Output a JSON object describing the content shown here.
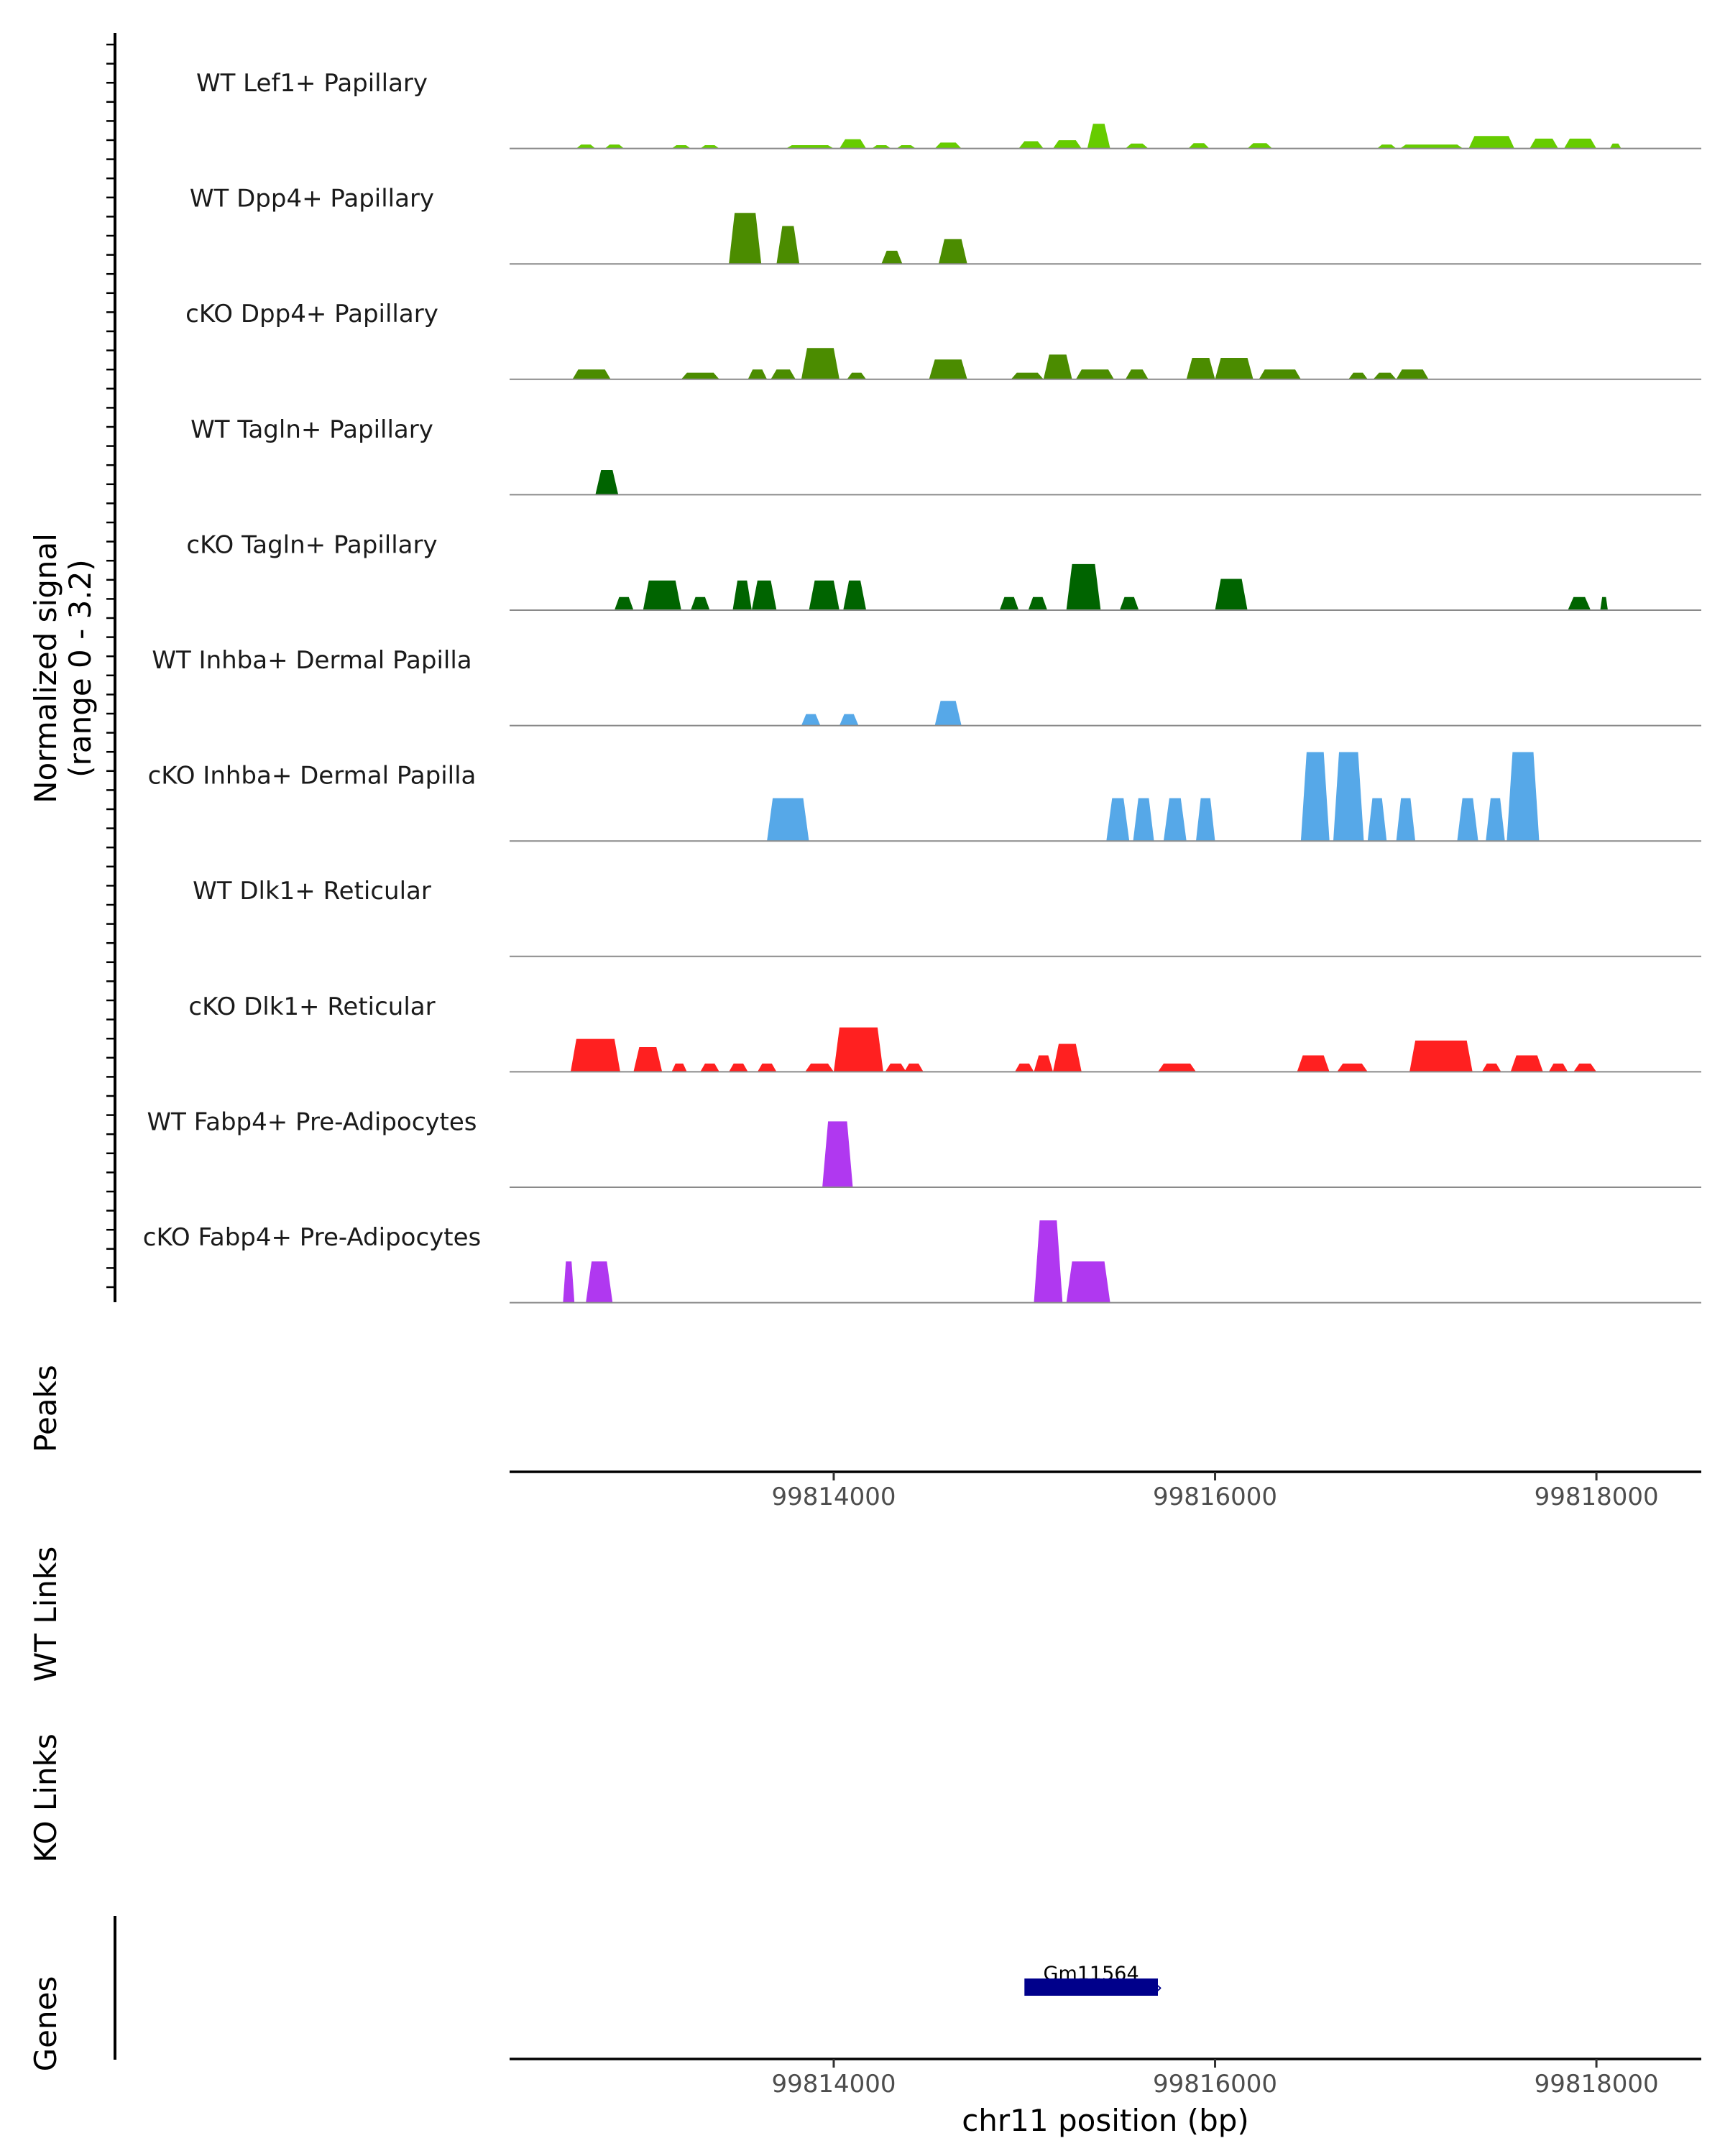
{
  "chart_data": {
    "type": "area",
    "title": "",
    "chromosome": "chr11",
    "xlabel": "chr11 position (bp)",
    "ylabel_line1": "Normalized signal",
    "ylabel_line2": "(range 0 - 3.2)",
    "ylim": [
      0,
      3.2
    ],
    "xlim": [
      99812300,
      99818550
    ],
    "xticks": [
      99814000,
      99816000,
      99818000
    ],
    "xtick_labels": [
      "99814000",
      "99816000",
      "99818000"
    ],
    "side_labels": {
      "peaks": "Peaks",
      "wt_links": "WT Links",
      "ko_links": "KO Links",
      "genes": "Genes"
    },
    "gene": {
      "name": "Gm11564",
      "start": 99815000,
      "end": 99815700,
      "strand": "+",
      "color": "#00008b"
    },
    "series": [
      {
        "name": "WT Lef1+ Papillary",
        "color": "#66cc00",
        "regions": [
          [
            99812650,
            99812750,
            0.12
          ],
          [
            99812800,
            99812900,
            0.12
          ],
          [
            99813150,
            99813250,
            0.1
          ],
          [
            99813300,
            99813400,
            0.1
          ],
          [
            99813750,
            99814000,
            0.1
          ],
          [
            99814030,
            99814170,
            0.28
          ],
          [
            99814200,
            99814300,
            0.1
          ],
          [
            99814330,
            99814430,
            0.1
          ],
          [
            99814530,
            99814670,
            0.18
          ],
          [
            99814970,
            99815100,
            0.22
          ],
          [
            99815150,
            99815300,
            0.25
          ],
          [
            99815330,
            99815450,
            0.75
          ],
          [
            99815530,
            99815650,
            0.15
          ],
          [
            99815860,
            99815970,
            0.16
          ],
          [
            99816170,
            99816300,
            0.16
          ],
          [
            99816850,
            99816950,
            0.12
          ],
          [
            99816970,
            99817300,
            0.12
          ],
          [
            99817330,
            99817570,
            0.38
          ],
          [
            99817650,
            99817800,
            0.3
          ],
          [
            99817830,
            99818000,
            0.3
          ],
          [
            99818070,
            99818130,
            0.15
          ]
        ]
      },
      {
        "name": "WT Dpp4+ Papillary",
        "color": "#4b8c00",
        "regions": [
          [
            99813450,
            99813620,
            1.55
          ],
          [
            99813700,
            99813820,
            1.15
          ],
          [
            99814250,
            99814360,
            0.4
          ],
          [
            99814550,
            99814700,
            0.75
          ]
        ]
      },
      {
        "name": "cKO Dpp4+ Papillary",
        "color": "#4b8c00",
        "regions": [
          [
            99812630,
            99812830,
            0.3
          ],
          [
            99813200,
            99813400,
            0.2
          ],
          [
            99813550,
            99813650,
            0.3
          ],
          [
            99813670,
            99813800,
            0.3
          ],
          [
            99813830,
            99814030,
            0.95
          ],
          [
            99814070,
            99814170,
            0.2
          ],
          [
            99814500,
            99814700,
            0.6
          ],
          [
            99814930,
            99815100,
            0.2
          ],
          [
            99815100,
            99815250,
            0.75
          ],
          [
            99815270,
            99815470,
            0.3
          ],
          [
            99815530,
            99815650,
            0.3
          ],
          [
            99815850,
            99816000,
            0.65
          ],
          [
            99816000,
            99816200,
            0.65
          ],
          [
            99816230,
            99816450,
            0.3
          ],
          [
            99816700,
            99816800,
            0.2
          ],
          [
            99816830,
            99816950,
            0.2
          ],
          [
            99816950,
            99817120,
            0.3
          ]
        ]
      },
      {
        "name": "WT Tagln+ Papillary",
        "color": "#006400",
        "regions": [
          [
            99812750,
            99812870,
            0.75
          ]
        ]
      },
      {
        "name": "cKO Tagln+ Papillary",
        "color": "#006400",
        "regions": [
          [
            99812850,
            99812950,
            0.4
          ],
          [
            99813000,
            99813200,
            0.9
          ],
          [
            99813250,
            99813350,
            0.4
          ],
          [
            99813470,
            99813570,
            0.9
          ],
          [
            99813570,
            99813700,
            0.9
          ],
          [
            99813870,
            99814030,
            0.9
          ],
          [
            99814050,
            99814170,
            0.9
          ],
          [
            99814870,
            99814970,
            0.4
          ],
          [
            99815020,
            99815120,
            0.4
          ],
          [
            99815220,
            99815400,
            1.4
          ],
          [
            99815500,
            99815600,
            0.4
          ],
          [
            99816000,
            99816170,
            0.95
          ],
          [
            99817850,
            99817970,
            0.4
          ],
          [
            99818020,
            99818060,
            0.4
          ]
        ]
      },
      {
        "name": "WT Inhba+ Dermal Papilla",
        "color": "#56a8e8",
        "regions": [
          [
            99813830,
            99813930,
            0.35
          ],
          [
            99814030,
            99814130,
            0.35
          ],
          [
            99814530,
            99814670,
            0.75
          ]
        ]
      },
      {
        "name": "cKO Inhba+ Dermal Papilla",
        "color": "#56a8e8",
        "regions": [
          [
            99813650,
            99813870,
            1.3
          ],
          [
            99815430,
            99815550,
            1.3
          ],
          [
            99815570,
            99815680,
            1.3
          ],
          [
            99815730,
            99815850,
            1.3
          ],
          [
            99815900,
            99816000,
            1.3
          ],
          [
            99816450,
            99816600,
            2.7
          ],
          [
            99816620,
            99816780,
            2.7
          ],
          [
            99816800,
            99816900,
            1.3
          ],
          [
            99816950,
            99817050,
            1.3
          ],
          [
            99817270,
            99817380,
            1.3
          ],
          [
            99817420,
            99817520,
            1.3
          ],
          [
            99817530,
            99817700,
            2.7
          ]
        ]
      },
      {
        "name": "WT Dlk1+ Reticular",
        "color": "#ff2020",
        "regions": []
      },
      {
        "name": "cKO Dlk1+ Reticular",
        "color": "#ff2020",
        "regions": [
          [
            99812620,
            99812880,
            1.0
          ],
          [
            99812950,
            99813100,
            0.75
          ],
          [
            99813150,
            99813230,
            0.25
          ],
          [
            99813300,
            99813400,
            0.25
          ],
          [
            99813450,
            99813550,
            0.25
          ],
          [
            99813600,
            99813700,
            0.25
          ],
          [
            99813850,
            99814000,
            0.25
          ],
          [
            99814000,
            99814260,
            1.35
          ],
          [
            99814270,
            99814380,
            0.25
          ],
          [
            99814370,
            99814470,
            0.25
          ],
          [
            99814950,
            99815050,
            0.25
          ],
          [
            99815050,
            99815150,
            0.5
          ],
          [
            99815150,
            99815300,
            0.85
          ],
          [
            99815700,
            99815900,
            0.25
          ],
          [
            99816430,
            99816600,
            0.5
          ],
          [
            99816640,
            99816800,
            0.25
          ],
          [
            99817020,
            99817350,
            0.95
          ],
          [
            99817400,
            99817500,
            0.25
          ],
          [
            99817550,
            99817720,
            0.5
          ],
          [
            99817750,
            99817850,
            0.25
          ],
          [
            99817880,
            99818000,
            0.25
          ]
        ]
      },
      {
        "name": "WT Fabp4+ Pre-Adipocytes",
        "color": "#b038f0",
        "regions": [
          [
            99813940,
            99814100,
            2.0
          ]
        ]
      },
      {
        "name": "cKO Fabp4+ Pre-Adipocytes",
        "color": "#b038f0",
        "regions": [
          [
            99812580,
            99812640,
            1.25
          ],
          [
            99812700,
            99812840,
            1.25
          ],
          [
            99815050,
            99815200,
            2.5
          ],
          [
            99815220,
            99815450,
            1.25
          ]
        ]
      }
    ]
  }
}
